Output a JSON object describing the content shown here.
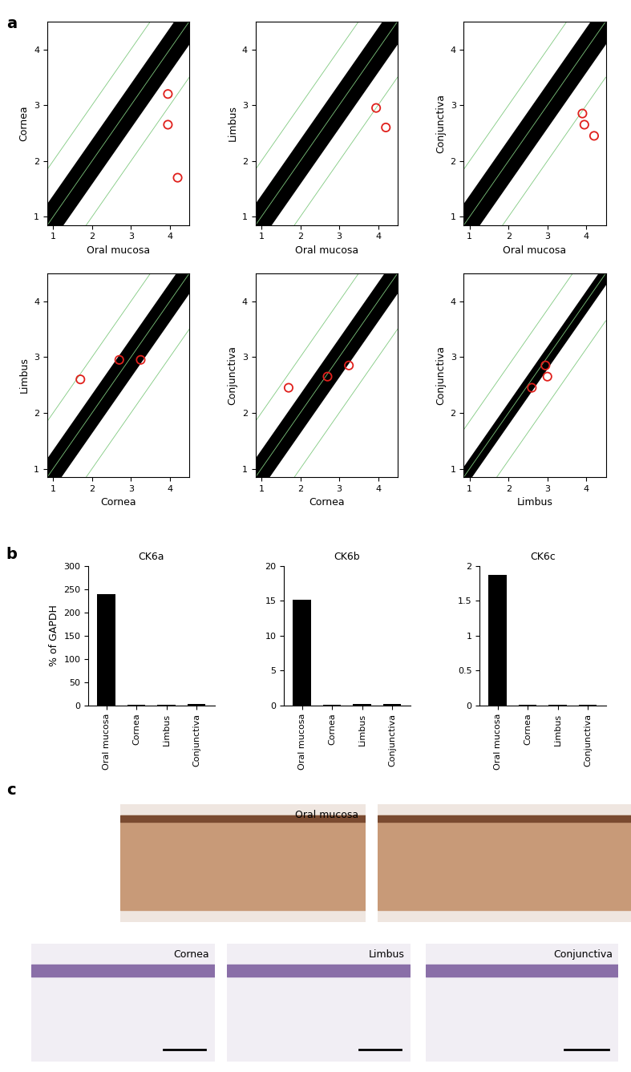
{
  "panel_labels": [
    "a",
    "b",
    "c"
  ],
  "chart_data": [
    {
      "type": "scatter",
      "panel": "a",
      "xlabel": "Oral mucosa",
      "ylabel": "Cornea",
      "xlim": [
        0.85,
        4.5
      ],
      "ylim": [
        0.85,
        4.5
      ],
      "xticks": [
        1,
        2,
        3,
        4
      ],
      "yticks": [
        1,
        2,
        3,
        4
      ],
      "spread": 0.4,
      "guide_lines": [
        -1,
        0,
        1
      ],
      "x": [
        3.95,
        3.95,
        4.2
      ],
      "values": [
        3.2,
        2.65,
        1.7
      ],
      "color": "#e0201c",
      "marker": "circle"
    },
    {
      "type": "scatter",
      "panel": "a",
      "xlabel": "Oral mucosa",
      "ylabel": "Limbus",
      "xlim": [
        0.85,
        4.5
      ],
      "ylim": [
        0.85,
        4.5
      ],
      "xticks": [
        1,
        2,
        3,
        4
      ],
      "yticks": [
        1,
        2,
        3,
        4
      ],
      "spread": 0.4,
      "guide_lines": [
        -1,
        0,
        1
      ],
      "x": [
        3.95,
        4.2
      ],
      "values": [
        2.95,
        2.6
      ],
      "color": "#e0201c",
      "marker": "circle"
    },
    {
      "type": "scatter",
      "panel": "a",
      "xlabel": "Oral mucosa",
      "ylabel": "Conjunctiva",
      "xlim": [
        0.85,
        4.5
      ],
      "ylim": [
        0.85,
        4.5
      ],
      "xticks": [
        1,
        2,
        3,
        4
      ],
      "yticks": [
        1,
        2,
        3,
        4
      ],
      "spread": 0.4,
      "guide_lines": [
        -1,
        0,
        1
      ],
      "x": [
        3.9,
        3.95,
        4.2
      ],
      "values": [
        2.85,
        2.65,
        2.45
      ],
      "color": "#e0201c",
      "marker": "circle"
    },
    {
      "type": "scatter",
      "panel": "a",
      "xlabel": "Cornea",
      "ylabel": "Limbus",
      "xlim": [
        0.85,
        4.5
      ],
      "ylim": [
        0.85,
        4.5
      ],
      "xticks": [
        1,
        2,
        3,
        4
      ],
      "yticks": [
        1,
        2,
        3,
        4
      ],
      "spread": 0.35,
      "guide_lines": [
        -1,
        0,
        1
      ],
      "x": [
        1.7,
        2.7,
        3.25
      ],
      "values": [
        2.6,
        2.95,
        2.95
      ],
      "color": "#e0201c",
      "marker": "circle"
    },
    {
      "type": "scatter",
      "panel": "a",
      "xlabel": "Cornea",
      "ylabel": "Conjunctiva",
      "xlim": [
        0.85,
        4.5
      ],
      "ylim": [
        0.85,
        4.5
      ],
      "xticks": [
        1,
        2,
        3,
        4
      ],
      "yticks": [
        1,
        2,
        3,
        4
      ],
      "spread": 0.35,
      "guide_lines": [
        -1,
        0,
        1
      ],
      "x": [
        1.7,
        2.7,
        3.25
      ],
      "values": [
        2.45,
        2.65,
        2.85
      ],
      "color": "#e0201c",
      "marker": "circle"
    },
    {
      "type": "scatter",
      "panel": "a",
      "xlabel": "Limbus",
      "ylabel": "Conjunctiva",
      "xlim": [
        0.85,
        4.5
      ],
      "ylim": [
        0.85,
        4.5
      ],
      "xticks": [
        1,
        2,
        3,
        4
      ],
      "yticks": [
        1,
        2,
        3,
        4
      ],
      "spread": 0.2,
      "guide_lines": [
        -0.85,
        0,
        0.85
      ],
      "x": [
        2.6,
        2.95,
        3.0
      ],
      "values": [
        2.45,
        2.85,
        2.65
      ],
      "color": "#e0201c",
      "marker": "circle"
    },
    {
      "type": "bar",
      "panel": "b",
      "title": "CK6a",
      "ylabel": "% of GAPDH",
      "categories": [
        "Oral mucosa",
        "Cornea",
        "Limbus",
        "Conjunctiva"
      ],
      "values": [
        240,
        1,
        2,
        3
      ],
      "color": "#000000",
      "ylim": [
        0,
        300
      ],
      "yticks": [
        0,
        50,
        100,
        150,
        200,
        250,
        300
      ]
    },
    {
      "type": "bar",
      "panel": "b",
      "title": "CK6b",
      "categories": [
        "Oral mucosa",
        "Cornea",
        "Limbus",
        "Conjunctiva"
      ],
      "values": [
        15.2,
        0.1,
        0.2,
        0.2
      ],
      "color": "#000000",
      "ylim": [
        0,
        20
      ],
      "yticks": [
        0,
        5,
        10,
        15,
        20
      ]
    },
    {
      "type": "bar",
      "panel": "b",
      "title": "CK6c",
      "categories": [
        "Oral mucosa",
        "Cornea",
        "Limbus",
        "Conjunctiva"
      ],
      "values": [
        1.87,
        0.01,
        0.01,
        0.01
      ],
      "color": "#000000",
      "ylim": [
        0,
        2
      ],
      "yticks": [
        0,
        0.5,
        1,
        1.5,
        2
      ]
    }
  ],
  "images": [
    {
      "label": "Oral mucosa",
      "stained": true
    },
    {
      "label": null,
      "stained": true
    },
    {
      "label": "Cornea",
      "stained": false
    },
    {
      "label": "Limbus",
      "stained": false
    },
    {
      "label": "Conjunctiva",
      "stained": false
    }
  ]
}
